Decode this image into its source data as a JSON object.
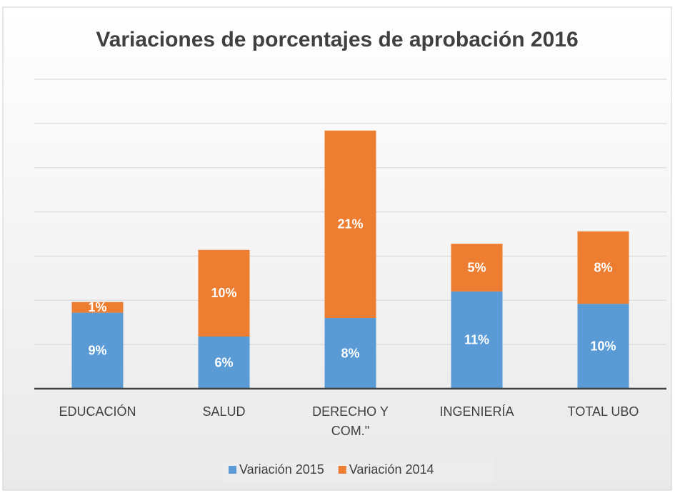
{
  "chart_data": {
    "type": "stacked_bar",
    "title": "Variaciones de porcentajes de aprobación 2016",
    "categories": [
      "EDUCACIÓN",
      "SALUD",
      "DERECHO Y COM.\"",
      "INGENIERÍA",
      "TOTAL UBO"
    ],
    "series": [
      {
        "name": "Variación 2015",
        "color": "#5b9bd5",
        "values": [
          8.6,
          5.9,
          8.0,
          11.0,
          9.6
        ],
        "value_labels": [
          "9%",
          "6%",
          "8%",
          "11%",
          "10%"
        ]
      },
      {
        "name": "Variación 2014",
        "color": "#ed7d31",
        "values": [
          1.2,
          9.8,
          21.2,
          5.4,
          8.2
        ],
        "value_labels": [
          "1%",
          "10%",
          "21%",
          "5%",
          "8%"
        ]
      }
    ],
    "ylim": [
      0,
      35
    ],
    "yticks": [
      0,
      5,
      10,
      15,
      20,
      25,
      30,
      35
    ],
    "grid": true,
    "legend": "bottom"
  }
}
